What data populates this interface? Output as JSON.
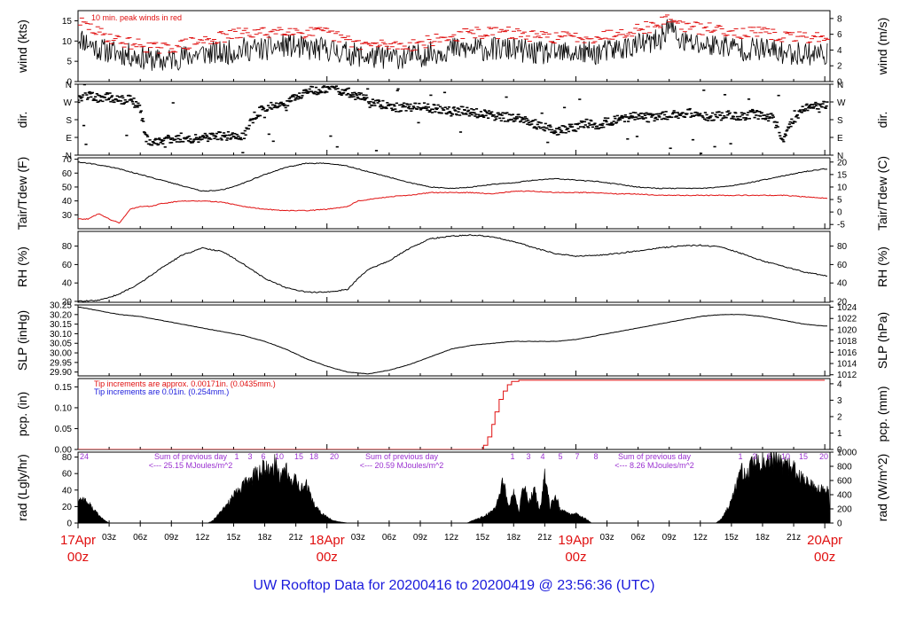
{
  "title": "UW Rooftop Data for 20200416  to  20200419 @ 23:56:36  (UTC)",
  "colors": {
    "title": "#1a1adc",
    "red": "#e01010",
    "blue": "#1a1adc",
    "purple": "#9a30d0",
    "black": "#000000"
  },
  "time_axis": {
    "hour_labels": [
      "03z",
      "06z",
      "09z",
      "12z",
      "15z",
      "18z",
      "21z"
    ],
    "day_labels": [
      {
        "day": "17Apr",
        "hour": "00z",
        "offset_h": 0
      },
      {
        "day": "18Apr",
        "hour": "00z",
        "offset_h": 24
      },
      {
        "day": "19Apr",
        "hour": "00z",
        "offset_h": 48
      },
      {
        "day": "20Apr",
        "hour": "00z",
        "offset_h": 72
      }
    ]
  },
  "chart_data": [
    {
      "id": "wind",
      "type": "line",
      "ylabel_left": "wind (kts)",
      "ylabel_right": "wind (m/s)",
      "ylim_left": [
        0,
        17.5
      ],
      "yticks_left": [
        0,
        5,
        10,
        15
      ],
      "ylim_right": [
        0,
        9
      ],
      "yticks_right": [
        0,
        2,
        4,
        6,
        8
      ],
      "annotation": "10 min. peak winds in red",
      "series": [
        {
          "id": "mean",
          "color": "#000000",
          "x": [
            0,
            2,
            4,
            6,
            8,
            10,
            12,
            14,
            16,
            18,
            20,
            22,
            24,
            26,
            28,
            30,
            32,
            34,
            36,
            38,
            40,
            42,
            44,
            46,
            48,
            50,
            52,
            54,
            56,
            57,
            58,
            60,
            62,
            64,
            66,
            68,
            70,
            72
          ],
          "y": [
            11,
            8,
            7,
            6,
            5,
            6,
            7,
            7,
            8,
            8,
            9,
            8,
            8,
            7,
            6,
            6,
            6,
            7,
            8,
            8,
            8,
            8,
            7,
            7,
            7,
            7,
            8,
            9,
            10,
            14,
            10,
            9,
            9,
            8,
            8,
            7,
            7,
            7
          ]
        },
        {
          "id": "peak",
          "color": "#e01010",
          "style": "dashes",
          "x": [
            0,
            2,
            4,
            6,
            8,
            10,
            12,
            14,
            16,
            18,
            20,
            22,
            24,
            26,
            28,
            30,
            32,
            34,
            36,
            38,
            40,
            42,
            44,
            46,
            48,
            50,
            52,
            54,
            56,
            57,
            58,
            60,
            62,
            64,
            66,
            68,
            70,
            72
          ],
          "y": [
            15,
            12,
            10,
            9,
            8,
            9,
            10,
            11,
            12,
            12,
            13,
            12,
            12,
            10,
            9,
            9,
            9,
            10,
            11,
            12,
            12,
            12,
            11,
            11,
            11,
            11,
            12,
            13,
            14,
            16,
            14,
            13,
            13,
            12,
            12,
            11,
            11,
            11
          ]
        }
      ]
    },
    {
      "id": "dir",
      "type": "scatter",
      "ylabel_left": "dir.",
      "ylabel_right": "dir.",
      "ylim_left": [
        0,
        360
      ],
      "ytick_labels": [
        {
          "v": 0,
          "t": "N"
        },
        {
          "v": 90,
          "t": "E"
        },
        {
          "v": 180,
          "t": "S"
        },
        {
          "v": 270,
          "t": "W"
        },
        {
          "v": 360,
          "t": "N"
        }
      ],
      "x": [
        0,
        1,
        2,
        3,
        4,
        5,
        6,
        6.5,
        7,
        8,
        9,
        10,
        11,
        12,
        13,
        14,
        15,
        16,
        17,
        18,
        19,
        20,
        21,
        22,
        23,
        24,
        25,
        26,
        27,
        28,
        29,
        30,
        31,
        32,
        33,
        34,
        35,
        36,
        37,
        38,
        39,
        40,
        41,
        42,
        43,
        44,
        45,
        46,
        47,
        48,
        49,
        50,
        51,
        52,
        53,
        54,
        55,
        56,
        57,
        58,
        59,
        60,
        61,
        62,
        63,
        64,
        65,
        66,
        67,
        68,
        69,
        70,
        71,
        72
      ],
      "y": [
        290,
        300,
        290,
        295,
        280,
        285,
        240,
        90,
        70,
        75,
        80,
        90,
        85,
        90,
        95,
        100,
        95,
        100,
        200,
        240,
        250,
        260,
        300,
        320,
        330,
        335,
        330,
        320,
        300,
        280,
        260,
        250,
        240,
        245,
        250,
        240,
        230,
        220,
        225,
        215,
        210,
        200,
        195,
        190,
        180,
        160,
        140,
        120,
        130,
        140,
        160,
        150,
        170,
        180,
        190,
        200,
        190,
        195,
        200,
        210,
        215,
        200,
        190,
        200,
        205,
        195,
        210,
        200,
        190,
        80,
        180,
        240,
        250,
        260
      ]
    },
    {
      "id": "temp",
      "type": "line",
      "ylabel_left": "Tair/Tdew (F)",
      "ylabel_right": "Tair/Tdew (C)",
      "ylim_left": [
        20,
        71
      ],
      "yticks_left": [
        30,
        40,
        50,
        60,
        70
      ],
      "ylim_right": [
        -6.7,
        21.7
      ],
      "yticks_right": [
        -5,
        0,
        5,
        10,
        15,
        20
      ],
      "series": [
        {
          "id": "tair",
          "color": "#000000",
          "x": [
            0,
            2,
            4,
            6,
            8,
            10,
            12,
            14,
            16,
            18,
            20,
            22,
            24,
            26,
            28,
            30,
            32,
            34,
            36,
            38,
            40,
            42,
            44,
            46,
            48,
            50,
            52,
            54,
            56,
            58,
            60,
            62,
            64,
            66,
            68,
            70,
            72
          ],
          "y": [
            68,
            66,
            63,
            59,
            55,
            51,
            47,
            48,
            53,
            59,
            64,
            67,
            67,
            65,
            61,
            57,
            53,
            50,
            49,
            50,
            52,
            53,
            55,
            56,
            55,
            54,
            52,
            50,
            49,
            49,
            49,
            50,
            52,
            55,
            58,
            61,
            63
          ]
        },
        {
          "id": "tdew",
          "color": "#e01010",
          "x": [
            0,
            1,
            2,
            3,
            4,
            5,
            6,
            7,
            8,
            10,
            12,
            14,
            16,
            18,
            20,
            22,
            24,
            26,
            27,
            28,
            30,
            32,
            34,
            36,
            38,
            40,
            42,
            44,
            46,
            48,
            50,
            52,
            54,
            56,
            58,
            60,
            62,
            64,
            66,
            68,
            70,
            72
          ],
          "y": [
            27,
            27,
            31,
            27,
            24,
            34,
            36,
            36,
            38,
            40,
            40,
            39,
            36,
            34,
            33,
            33,
            34,
            36,
            40,
            41,
            43,
            44,
            46,
            46,
            46,
            45,
            47,
            47,
            46,
            46,
            46,
            45,
            45,
            44,
            44,
            44,
            44,
            44,
            44,
            44,
            43,
            42
          ]
        }
      ]
    },
    {
      "id": "rh",
      "type": "line",
      "ylabel_left": "RH (%)",
      "ylabel_right": "RH (%)",
      "ylim_left": [
        19,
        96
      ],
      "yticks_left": [
        20,
        40,
        60,
        80
      ],
      "ylim_right": [
        19,
        96
      ],
      "yticks_right": [
        20,
        40,
        60,
        80
      ],
      "series": [
        {
          "id": "rh",
          "color": "#000000",
          "x": [
            0,
            2,
            4,
            6,
            8,
            10,
            12,
            14,
            16,
            18,
            20,
            22,
            24,
            26,
            27,
            28,
            30,
            32,
            34,
            36,
            38,
            40,
            42,
            44,
            46,
            48,
            50,
            52,
            54,
            56,
            58,
            60,
            62,
            64,
            66,
            68,
            70,
            72
          ],
          "y": [
            20,
            21,
            28,
            40,
            56,
            70,
            78,
            74,
            60,
            45,
            35,
            30,
            30,
            33,
            45,
            55,
            64,
            78,
            88,
            91,
            92,
            90,
            85,
            78,
            72,
            69,
            70,
            72,
            75,
            78,
            80,
            81,
            79,
            72,
            64,
            58,
            52,
            48
          ]
        }
      ]
    },
    {
      "id": "slp",
      "type": "line",
      "ylabel_left": "SLP (inHg)",
      "ylabel_right": "SLP (hPa)",
      "ylim_left": [
        29.88,
        30.25
      ],
      "yticks_left": [
        29.9,
        29.95,
        30.0,
        30.05,
        30.1,
        30.15,
        30.2,
        30.25
      ],
      "ytick_labels_left": [
        "29.90",
        "29.95",
        "30.00",
        "30.05",
        "30.10",
        "30.15",
        "30.20",
        "30.25"
      ],
      "ylim_right": [
        1011.8,
        1024.4
      ],
      "yticks_right": [
        1012,
        1014,
        1016,
        1018,
        1020,
        1022,
        1024
      ],
      "series": [
        {
          "id": "slp",
          "color": "#000000",
          "x": [
            0,
            2,
            4,
            6,
            8,
            10,
            12,
            14,
            16,
            18,
            20,
            22,
            24,
            26,
            28,
            30,
            32,
            34,
            36,
            38,
            40,
            42,
            44,
            46,
            48,
            50,
            52,
            54,
            56,
            58,
            60,
            62,
            64,
            66,
            68,
            70,
            72
          ],
          "y": [
            30.24,
            30.22,
            30.2,
            30.19,
            30.17,
            30.15,
            30.13,
            30.11,
            30.09,
            30.06,
            30.02,
            29.97,
            29.93,
            29.9,
            29.89,
            29.91,
            29.94,
            29.98,
            30.02,
            30.04,
            30.05,
            30.06,
            30.06,
            30.06,
            30.07,
            30.09,
            30.11,
            30.13,
            30.15,
            30.17,
            30.19,
            30.2,
            30.2,
            30.19,
            30.17,
            30.15,
            30.14
          ]
        }
      ]
    },
    {
      "id": "pcp",
      "type": "line",
      "ylabel_left": "pcp. (in)",
      "ylabel_right": "pcp. (mm)",
      "ylim_left": [
        0,
        0.17
      ],
      "yticks_left": [
        0,
        0.05,
        0.1,
        0.15
      ],
      "ytick_labels_left": [
        "0.00",
        "0.05",
        "0.10",
        "0.15"
      ],
      "ylim_right": [
        0,
        4.318
      ],
      "yticks_right": [
        0,
        1,
        2,
        3,
        4
      ],
      "annotations": [
        {
          "text": "Tip increments are approx. 0.00171in. (0.0435mm.)",
          "color": "#e01010"
        },
        {
          "text": "Tip increments are 0.01in. (0.254mm.)",
          "color": "#1a1adc"
        }
      ],
      "series": [
        {
          "id": "pcp",
          "color": "#e01010",
          "x": [
            0,
            38.8,
            39.1,
            39.5,
            39.9,
            40.2,
            40.6,
            41,
            41.4,
            41.8,
            42.5,
            72
          ],
          "y": [
            0,
            0,
            0.01,
            0.03,
            0.06,
            0.09,
            0.12,
            0.14,
            0.155,
            0.163,
            0.166,
            0.166
          ]
        }
      ]
    },
    {
      "id": "rad",
      "type": "area",
      "ylabel_left": "rad (Lgly/hr)",
      "ylabel_right": "rad (W/m^2)",
      "ylim_left": [
        0,
        86
      ],
      "yticks_left": [
        0,
        20,
        40,
        60,
        80
      ],
      "ylim_right": [
        0,
        1000
      ],
      "yticks_right": [
        0,
        200,
        400,
        600,
        800,
        1000
      ],
      "day_summaries": [
        {
          "text": "Sum of previous day",
          "value": "<--- 25.15 MJoules/m^2",
          "x": 26.5
        },
        {
          "text": "Sum of previous day",
          "value": "<--- 20.59 MJoules/m^2",
          "x": 50.5
        },
        {
          "text": "Sum of previous day",
          "value": "<--- 8.26 MJoules/m^2",
          "x": 74.5
        }
      ],
      "hour_marks_day1": [
        "24"
      ],
      "hour_marks_day2": [
        "1",
        "3",
        "6",
        "10",
        "15",
        "18",
        "20"
      ],
      "hour_marks_day3": [
        "1",
        "3",
        "4",
        "5",
        "7",
        "8"
      ],
      "hour_marks_day4": [
        "1",
        "3",
        "6",
        "10",
        "15",
        "20"
      ],
      "series": [
        {
          "id": "rad",
          "color": "#000000",
          "x": [
            0,
            0.5,
            1,
            1.5,
            2,
            2.5,
            3,
            12.5,
            13,
            14,
            15,
            16,
            17,
            18,
            18.5,
            19,
            19.5,
            20,
            20.5,
            21,
            21.5,
            22,
            22.5,
            23,
            23.5,
            24,
            24.5,
            25,
            25.5,
            26,
            37.5,
            38,
            39,
            40,
            40.5,
            41,
            41.5,
            42,
            42.5,
            43,
            43.5,
            44,
            44.5,
            45,
            45.5,
            46,
            46.5,
            47,
            47.5,
            48,
            48.5,
            49,
            49.5,
            61.5,
            62,
            62.5,
            63,
            63.5,
            64,
            64.5,
            65,
            66,
            67,
            68,
            69,
            70,
            71,
            72
          ],
          "y": [
            30,
            32,
            25,
            18,
            10,
            4,
            0,
            0,
            3,
            18,
            35,
            50,
            62,
            72,
            65,
            78,
            60,
            75,
            50,
            60,
            45,
            50,
            30,
            20,
            12,
            8,
            4,
            2,
            1,
            0,
            0,
            3,
            8,
            15,
            30,
            55,
            20,
            40,
            15,
            50,
            25,
            45,
            15,
            60,
            20,
            40,
            15,
            15,
            12,
            12,
            8,
            5,
            0,
            0,
            5,
            15,
            30,
            50,
            70,
            60,
            75,
            80,
            80,
            78,
            70,
            55,
            45,
            42
          ]
        }
      ]
    }
  ]
}
